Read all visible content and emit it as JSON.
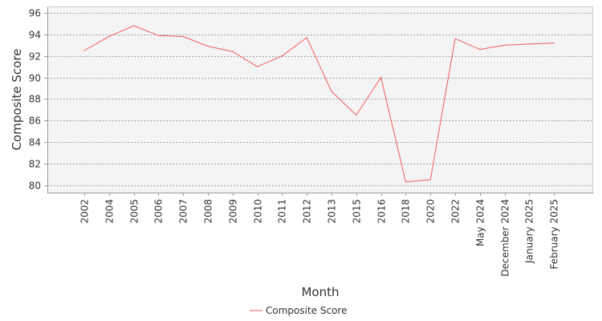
{
  "chart_data": {
    "type": "line",
    "xlabel": "Month",
    "ylabel": "Composite Score",
    "categories": [
      "2002",
      "2004",
      "2005",
      "2006",
      "2007",
      "2008",
      "2009",
      "2010",
      "2011",
      "2012",
      "2013",
      "2015",
      "2016",
      "2018",
      "2020",
      "2022",
      "May 2024",
      "December 2024",
      "January 2025",
      "February 2025"
    ],
    "series": [
      {
        "name": "Composite Score",
        "color": "#f15c5c",
        "values": [
          92.5,
          93.8,
          94.8,
          93.9,
          93.8,
          92.9,
          92.4,
          91.0,
          92.0,
          93.7,
          88.7,
          86.5,
          90.0,
          80.3,
          80.5,
          93.6,
          92.6,
          93.0,
          93.1,
          93.2
        ]
      }
    ],
    "yticks": [
      80,
      82,
      84,
      86,
      88,
      90,
      92,
      94,
      96
    ],
    "ylim": [
      79.3,
      96.6
    ],
    "grid": true,
    "legend": "bottom-center",
    "colors": {
      "plot_background": "#f4f4f4",
      "gridline": "#888888",
      "axis": "#999999"
    }
  }
}
